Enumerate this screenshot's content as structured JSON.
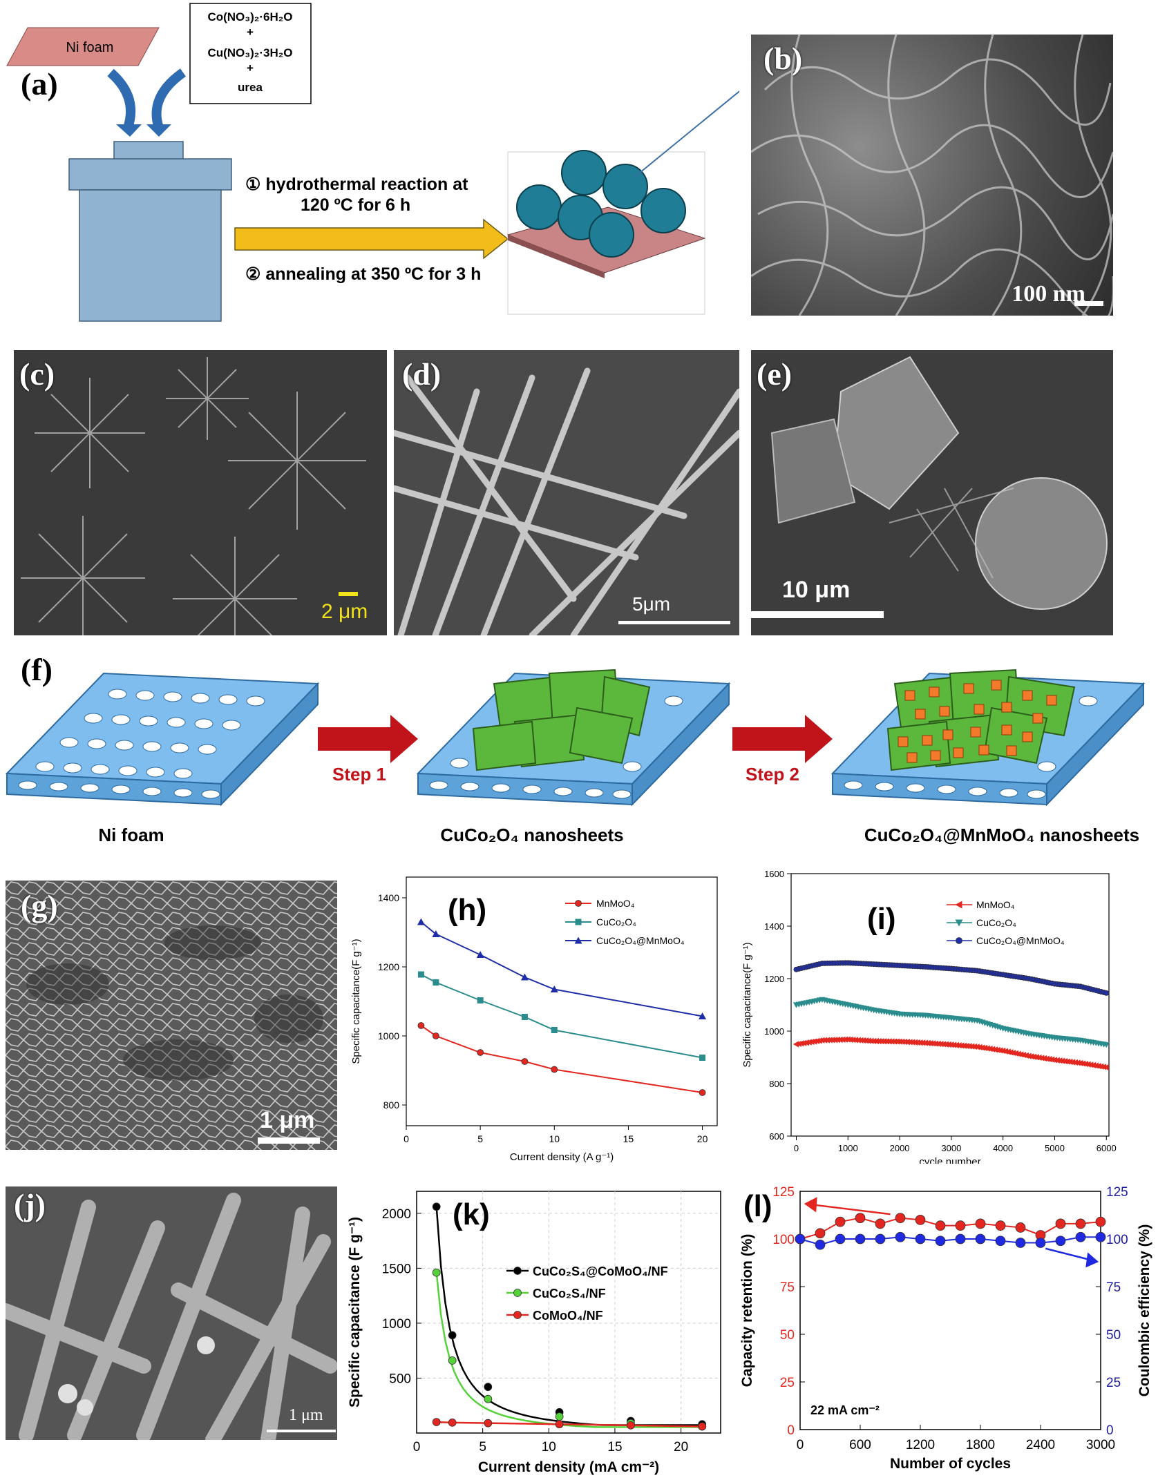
{
  "panels": {
    "a": {
      "label": "(a)"
    },
    "b": {
      "label": "(b)",
      "scale": "100 nm"
    },
    "c": {
      "label": "(c)",
      "scale": "2 μm"
    },
    "d": {
      "label": "(d)",
      "scale": "5μm"
    },
    "e": {
      "label": "(e)",
      "scale": "10 μm"
    },
    "f": {
      "label": "(f)"
    },
    "g": {
      "label": "(g)",
      "scale": "1 μm"
    },
    "h": {
      "label": "(h)"
    },
    "i": {
      "label": "(i)"
    },
    "j": {
      "label": "(j)",
      "scale": "1 μm"
    },
    "k": {
      "label": "(k)"
    },
    "l": {
      "label": "(l)"
    }
  },
  "schematic_a": {
    "ni_foam": "Ni foam",
    "reagent1": "Co(NO₃)₂·6H₂O",
    "plus1": "+",
    "reagent2": "Cu(NO₃)₂·3H₂O",
    "plus2": "+",
    "reagent3": "urea",
    "step1": "① hydrothermal reaction at",
    "step1b": "120 ºC for 6 h",
    "step2": "② annealing at 350 ºC for 3 h"
  },
  "schematic_f": {
    "step1": "Step 1",
    "step2": "Step 2",
    "cap1": "Ni foam",
    "cap2": "CuCo₂O₄ nanosheets",
    "cap3": "CuCo₂O₄@MnMoO₄ nanosheets"
  },
  "colors": {
    "mn": "#e3261f",
    "cu": "#2a8c8c",
    "cm": "#1f2ea8",
    "k_black": "#000000",
    "k_green": "#55d13a",
    "k_red": "#e3261f",
    "l_red": "#e3261f",
    "l_blue": "#1f2ae0",
    "foam": "#6aaee6",
    "sheet": "#5cb83c",
    "arrow": "#c0141a"
  },
  "chart_data": [
    {
      "id": "h",
      "type": "line",
      "xlabel": "Current density (A g⁻¹)",
      "ylabel": "Specific capacitance(F g⁻¹)",
      "xlim": [
        0,
        21
      ],
      "ylim": [
        740,
        1460
      ],
      "xticks": [
        "0",
        "5",
        "10",
        "15",
        "20"
      ],
      "yticks": [
        "800",
        "1000",
        "1200",
        "1400"
      ],
      "legend_position": "top-right",
      "series": [
        {
          "name": "MnMoO₄",
          "x": [
            1,
            2,
            5,
            8,
            10,
            20
          ],
          "y": [
            1030,
            1000,
            952,
            926,
            903,
            836
          ]
        },
        {
          "name": "CuCo₂O₄",
          "x": [
            1,
            2,
            5,
            8,
            10,
            20
          ],
          "y": [
            1178,
            1155,
            1103,
            1055,
            1017,
            937
          ]
        },
        {
          "name": "CuCo₂O₄@MnMoO₄",
          "x": [
            1,
            2,
            5,
            8,
            10,
            20
          ],
          "y": [
            1330,
            1295,
            1235,
            1170,
            1135,
            1057
          ]
        }
      ]
    },
    {
      "id": "i",
      "type": "line",
      "xlabel": "cycle number",
      "ylabel": "Specific capacitance(F g⁻¹)",
      "xlim": [
        -100,
        6050
      ],
      "ylim": [
        600,
        1600
      ],
      "xticks": [
        "0",
        "1000",
        "2000",
        "3000",
        "4000",
        "5000",
        "6000"
      ],
      "yticks": [
        "600",
        "800",
        "1000",
        "1200",
        "1400",
        "1600"
      ],
      "legend_position": "top-right",
      "series": [
        {
          "name": "MnMoO₄",
          "x": [
            0,
            500,
            1000,
            1500,
            2000,
            2500,
            3000,
            3500,
            4000,
            4500,
            5000,
            5500,
            6000
          ],
          "y": [
            950,
            965,
            968,
            962,
            960,
            955,
            948,
            940,
            925,
            905,
            890,
            878,
            862
          ]
        },
        {
          "name": "CuCo₂O₄",
          "x": [
            0,
            500,
            1000,
            1500,
            2000,
            2500,
            3000,
            3500,
            4000,
            4500,
            5000,
            5500,
            6000
          ],
          "y": [
            1100,
            1120,
            1100,
            1080,
            1065,
            1060,
            1050,
            1040,
            1010,
            990,
            975,
            965,
            948
          ]
        },
        {
          "name": "CuCo₂O₄@MnMoO₄",
          "x": [
            0,
            500,
            1000,
            1500,
            2000,
            2500,
            3000,
            3500,
            4000,
            4500,
            5000,
            5500,
            6000
          ],
          "y": [
            1235,
            1258,
            1260,
            1255,
            1250,
            1245,
            1238,
            1230,
            1215,
            1200,
            1180,
            1170,
            1145
          ]
        }
      ]
    },
    {
      "id": "k",
      "type": "scatter",
      "xlabel": "Current density (mA cm⁻²)",
      "ylabel": "Specific capacitance (F g⁻¹)",
      "xlim": [
        0,
        23
      ],
      "ylim": [
        0,
        2200
      ],
      "xticks": [
        "0",
        "5",
        "10",
        "15",
        "20"
      ],
      "yticks": [
        "500",
        "1000",
        "1500",
        "2000"
      ],
      "legend_position": "middle-right",
      "series": [
        {
          "name": "CuCo₂S₄@CoMoO₄/NF",
          "x": [
            1.5,
            2.7,
            5.4,
            10.8,
            16.2,
            21.6
          ],
          "y": [
            2060,
            890,
            420,
            190,
            110,
            80
          ]
        },
        {
          "name": "CuCo₂S₄/NF",
          "x": [
            1.5,
            2.7,
            5.4,
            10.8,
            16.2,
            21.6
          ],
          "y": [
            1460,
            660,
            310,
            150,
            90,
            60
          ]
        },
        {
          "name": "CoMoO₄/NF",
          "x": [
            1.5,
            2.7,
            5.4,
            10.8,
            16.2,
            21.6
          ],
          "y": [
            100,
            95,
            90,
            80,
            70,
            60
          ]
        }
      ]
    },
    {
      "id": "l",
      "type": "scatter",
      "xlabel": "Number of cycles",
      "ylabel": "Capacity retention (%)",
      "y2label": "Coulombic efficiency (%)",
      "annotation": "22 mA cm⁻²",
      "xlim": [
        0,
        3000
      ],
      "ylim": [
        0,
        125
      ],
      "y2lim": [
        0,
        125
      ],
      "xticks": [
        "0",
        "600",
        "1200",
        "1800",
        "2400",
        "3000"
      ],
      "yticks": [
        "0",
        "25",
        "50",
        "75",
        "100",
        "125"
      ],
      "series": [
        {
          "axis": "left",
          "x": [
            0,
            200,
            400,
            600,
            800,
            1000,
            1200,
            1400,
            1600,
            1800,
            2000,
            2200,
            2400,
            2600,
            2800,
            3000
          ],
          "y": [
            100,
            103,
            109,
            111,
            108,
            111,
            110,
            107,
            107,
            108,
            107,
            106,
            102,
            108,
            108,
            109
          ]
        },
        {
          "axis": "right",
          "x": [
            0,
            200,
            400,
            600,
            800,
            1000,
            1200,
            1400,
            1600,
            1800,
            2000,
            2200,
            2400,
            2600,
            2800,
            3000
          ],
          "y": [
            100,
            97,
            100,
            100,
            100,
            101,
            100,
            99,
            100,
            100,
            99,
            98,
            98,
            99,
            101,
            101
          ]
        }
      ]
    }
  ]
}
